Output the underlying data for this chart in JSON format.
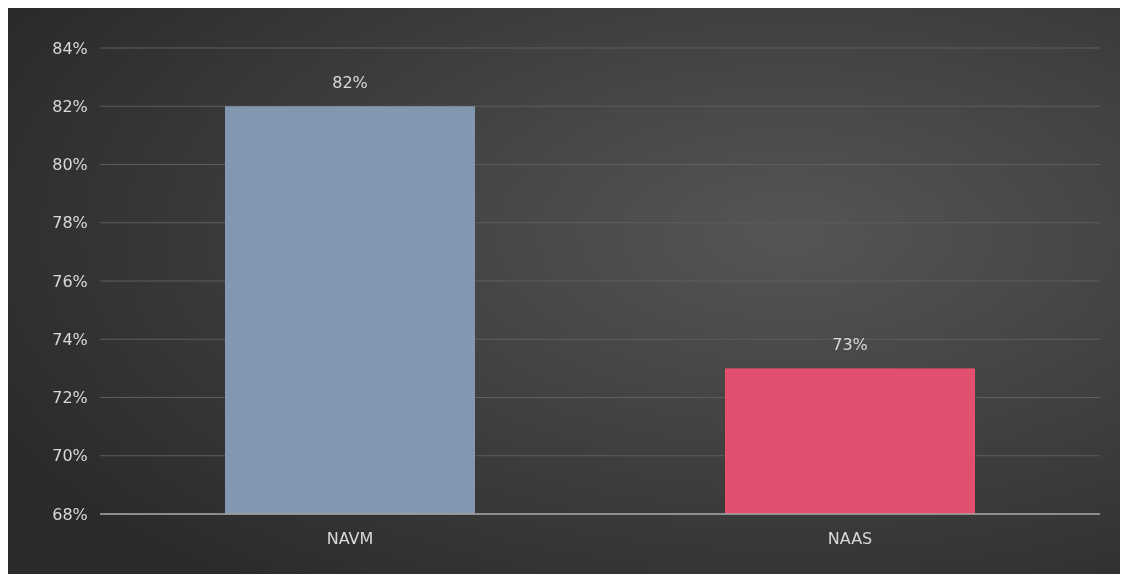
{
  "chart_data": {
    "type": "bar",
    "categories": [
      "NAVM",
      "NAAS"
    ],
    "values": [
      82,
      73
    ],
    "colors": [
      "#8497b0",
      "#e34f6f"
    ],
    "ylim": [
      68,
      84
    ],
    "yticks": [
      {
        "value": 68,
        "label": "68%"
      },
      {
        "value": 70,
        "label": "70%"
      },
      {
        "value": 72,
        "label": "72%"
      },
      {
        "value": 74,
        "label": "74%"
      },
      {
        "value": 76,
        "label": "76%"
      },
      {
        "value": 78,
        "label": "78%"
      },
      {
        "value": 80,
        "label": "80%"
      },
      {
        "value": 82,
        "label": "82%"
      },
      {
        "value": 84,
        "label": "84%"
      }
    ],
    "value_labels": [
      "82%",
      "73%"
    ],
    "grid": "y"
  }
}
